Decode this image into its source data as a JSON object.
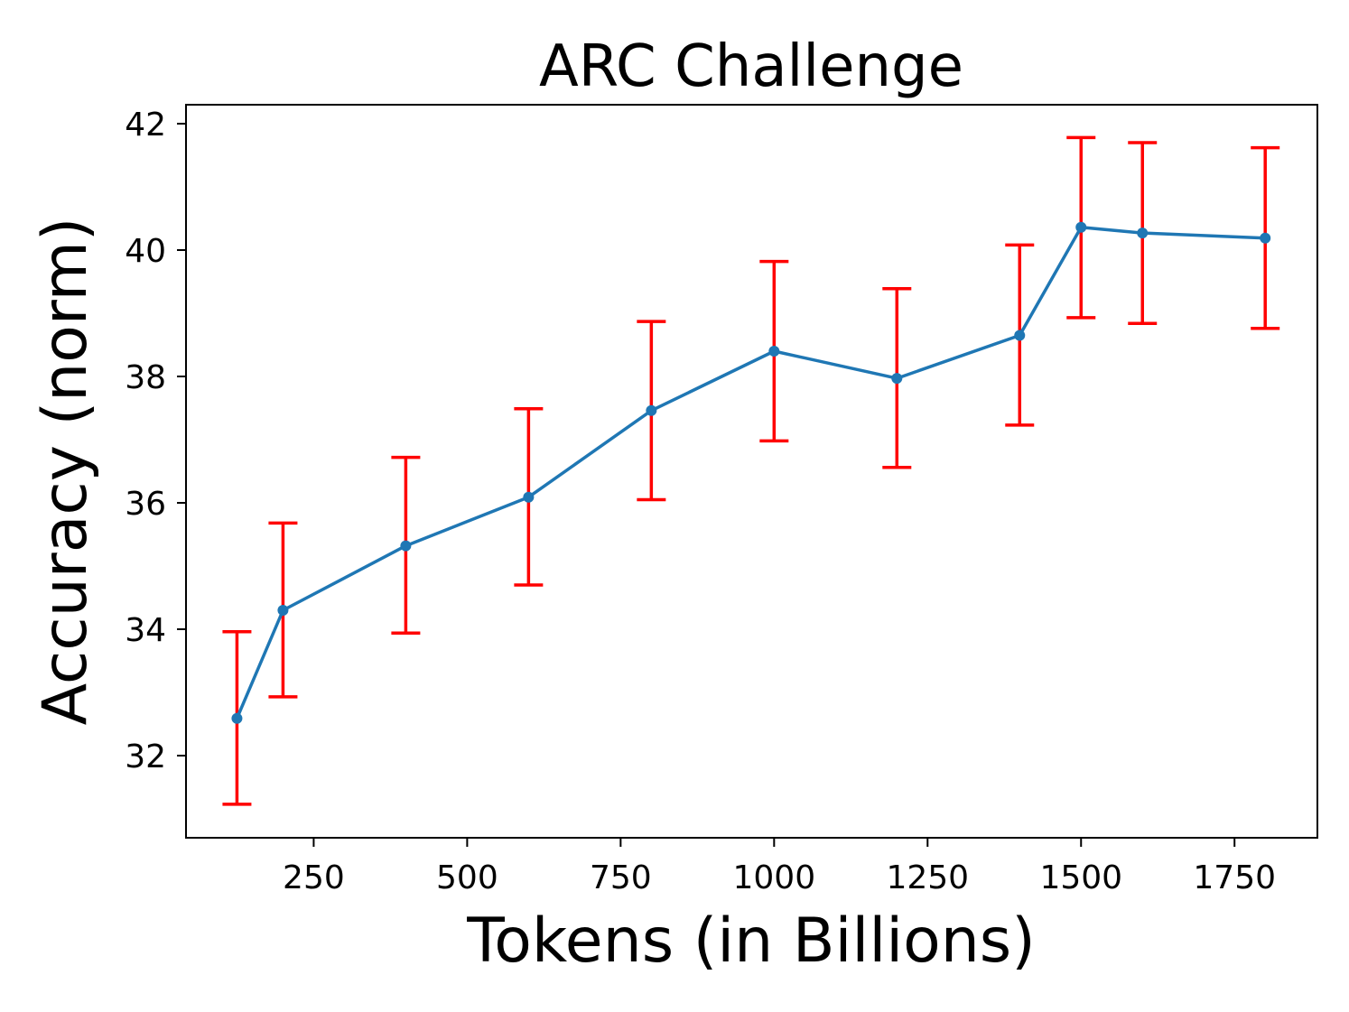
{
  "chart_data": {
    "type": "line",
    "title": "ARC Challenge",
    "xlabel": "Tokens (in Billions)",
    "ylabel": "Accuracy (norm)",
    "xlim": [
      42,
      1885
    ],
    "ylim": [
      30.7,
      42.3
    ],
    "xticks": [
      250,
      500,
      750,
      1000,
      1250,
      1500,
      1750
    ],
    "yticks": [
      32,
      34,
      36,
      38,
      40,
      42
    ],
    "grid": false,
    "series": [
      {
        "x": [
          125,
          200,
          400,
          600,
          800,
          1000,
          1200,
          1400,
          1500,
          1600,
          1800
        ],
        "y": [
          32.59,
          34.3,
          35.32,
          36.09,
          37.46,
          38.4,
          37.97,
          38.65,
          40.36,
          40.27,
          40.19
        ],
        "err_low": [
          31.23,
          32.93,
          33.94,
          34.7,
          36.05,
          36.98,
          36.56,
          37.23,
          38.93,
          38.84,
          38.76
        ],
        "err_high": [
          33.96,
          35.68,
          36.72,
          37.49,
          38.87,
          39.82,
          39.39,
          40.08,
          41.78,
          41.7,
          41.62
        ],
        "line_color": "#1f77b4",
        "errorbar_color": "#ff0000"
      }
    ]
  }
}
